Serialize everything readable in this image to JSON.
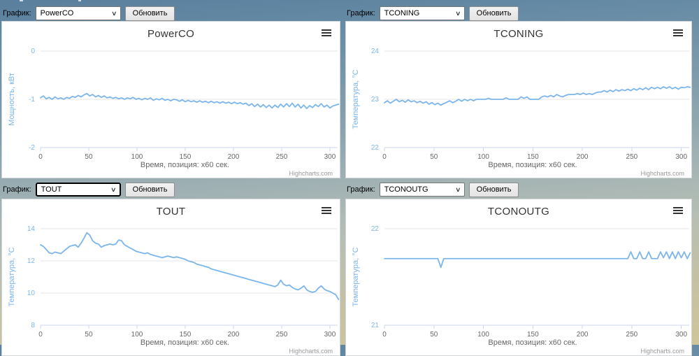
{
  "colors": {
    "series": "#7cb5ec",
    "grid": "#e6e6e6",
    "axis_line": "#ccd6eb",
    "x_axis_label": "#666666",
    "y_axis_label": "#7cb5ec",
    "title": "#333333",
    "credits": "#999999",
    "background_top": "#597f9e",
    "background_bottom": "#cfc59a"
  },
  "panels": [
    {
      "control": {
        "label": "График:",
        "select_value": "PowerCO",
        "button": "Обновить",
        "focused": false
      }
    },
    {
      "control": {
        "label": "График:",
        "select_value": "TCONING",
        "button": "Обновить",
        "focused": false
      }
    },
    {
      "control": {
        "label": "График:",
        "select_value": "TOUT",
        "button": "Обновить",
        "focused": true
      }
    },
    {
      "control": {
        "label": "График:",
        "select_value": "TCONOUTG",
        "button": "Обновить",
        "focused": false
      }
    }
  ],
  "chart_data": [
    {
      "type": "line",
      "title": "PowerCO",
      "xlabel": "Время, позиция: x60 сек.",
      "ylabel": "Мощность, кВт",
      "credits": "Highcharts.com",
      "legend_position": "none",
      "grid": "horizontal",
      "xlim": [
        0,
        308
      ],
      "ylim": [
        -2,
        0
      ],
      "xticks": [
        0,
        50,
        100,
        150,
        200,
        250,
        300
      ],
      "yticks": [
        0,
        -1,
        -2
      ],
      "x_start": 0,
      "x_step": 3,
      "values": [
        -0.97,
        -0.93,
        -0.99,
        -0.96,
        -1.0,
        -0.95,
        -0.99,
        -0.97,
        -1.0,
        -0.96,
        -0.98,
        -0.94,
        -0.96,
        -0.92,
        -0.95,
        -0.91,
        -0.88,
        -0.93,
        -0.9,
        -0.95,
        -0.92,
        -0.96,
        -0.93,
        -0.97,
        -0.95,
        -0.98,
        -0.96,
        -0.99,
        -0.97,
        -1.0,
        -0.97,
        -0.99,
        -0.96,
        -1.0,
        -0.98,
        -1.01,
        -0.98,
        -1.0,
        -0.97,
        -1.02,
        -0.99,
        -1.01,
        -0.98,
        -1.02,
        -1.0,
        -1.03,
        -1.0,
        -1.01,
        -1.04,
        -1.01,
        -1.05,
        -1.02,
        -1.05,
        -1.03,
        -1.06,
        -1.03,
        -1.06,
        -1.04,
        -1.07,
        -1.04,
        -1.07,
        -1.05,
        -1.08,
        -1.05,
        -1.08,
        -1.06,
        -1.09,
        -1.06,
        -1.09,
        -1.07,
        -1.1,
        -1.08,
        -1.13,
        -1.09,
        -1.15,
        -1.1,
        -1.16,
        -1.11,
        -1.17,
        -1.12,
        -1.18,
        -1.12,
        -1.17,
        -1.1,
        -1.16,
        -1.09,
        -1.15,
        -1.08,
        -1.16,
        -1.1,
        -1.18,
        -1.12,
        -1.19,
        -1.13,
        -1.17,
        -1.11,
        -1.15,
        -1.09,
        -1.16,
        -1.12,
        -1.18,
        -1.14,
        -1.12,
        -1.1
      ]
    },
    {
      "type": "line",
      "title": "TCONING",
      "xlabel": "Время, позиция: x60 сек.",
      "ylabel": "Температура, °C",
      "credits": "Highcharts.com",
      "legend_position": "none",
      "grid": "horizontal",
      "xlim": [
        0,
        308
      ],
      "ylim": [
        22,
        24
      ],
      "xticks": [
        0,
        50,
        100,
        150,
        200,
        250,
        300
      ],
      "yticks": [
        24,
        23,
        22
      ],
      "x_start": 0,
      "x_step": 3,
      "values": [
        22.93,
        22.97,
        22.92,
        22.96,
        23.0,
        22.95,
        22.98,
        22.94,
        22.99,
        22.95,
        22.97,
        22.93,
        22.96,
        22.92,
        22.95,
        22.9,
        22.93,
        22.89,
        22.92,
        22.88,
        22.91,
        22.94,
        22.97,
        22.93,
        22.96,
        23.0,
        22.96,
        23.0,
        22.97,
        23.0,
        22.97,
        23.0,
        23.0,
        23.0,
        23.0,
        23.02,
        23.0,
        23.0,
        23.0,
        23.0,
        23.0,
        23.03,
        23.0,
        23.0,
        23.0,
        23.0,
        23.05,
        23.02,
        23.05,
        23.0,
        23.0,
        23.0,
        23.0,
        23.05,
        23.07,
        23.05,
        23.08,
        23.05,
        23.1,
        23.07,
        23.05,
        23.08,
        23.1,
        23.1,
        23.1,
        23.12,
        23.1,
        23.13,
        23.1,
        23.12,
        23.1,
        23.13,
        23.15,
        23.15,
        23.18,
        23.15,
        23.19,
        23.16,
        23.2,
        23.17,
        23.2,
        23.18,
        23.21,
        23.18,
        23.22,
        23.19,
        23.23,
        23.2,
        23.24,
        23.2,
        23.25,
        23.22,
        23.25,
        23.22,
        23.26,
        23.23,
        23.26,
        23.22,
        23.25,
        23.21,
        23.25,
        23.24,
        23.26,
        23.25
      ]
    },
    {
      "type": "line",
      "title": "TOUT",
      "xlabel": "Время, позиция: x60 сек.",
      "ylabel": "Температура, °C",
      "credits": "Highcharts.com",
      "legend_position": "none",
      "grid": "horizontal",
      "xlim": [
        0,
        308
      ],
      "ylim": [
        8,
        14
      ],
      "xticks": [
        0,
        50,
        100,
        150,
        200,
        250,
        300
      ],
      "yticks": [
        14,
        12,
        10,
        8
      ],
      "x_start": 0,
      "x_step": 3,
      "values": [
        13.0,
        12.9,
        12.7,
        12.5,
        12.45,
        12.55,
        12.5,
        12.45,
        12.6,
        12.75,
        12.9,
        12.95,
        13.0,
        12.85,
        13.1,
        13.4,
        13.75,
        13.6,
        13.25,
        13.1,
        13.05,
        12.85,
        12.95,
        13.0,
        13.05,
        13.0,
        13.05,
        13.3,
        13.25,
        13.0,
        12.9,
        12.8,
        12.7,
        12.6,
        12.55,
        12.5,
        12.45,
        12.5,
        12.4,
        12.35,
        12.3,
        12.25,
        12.2,
        12.25,
        12.3,
        12.25,
        12.2,
        12.25,
        12.2,
        12.15,
        12.1,
        12.0,
        11.95,
        11.9,
        11.8,
        11.75,
        11.7,
        11.65,
        11.6,
        11.5,
        11.45,
        11.4,
        11.35,
        11.3,
        11.25,
        11.2,
        11.15,
        11.1,
        11.05,
        11.0,
        10.95,
        10.9,
        10.85,
        10.8,
        10.75,
        10.7,
        10.65,
        10.6,
        10.55,
        10.5,
        10.45,
        10.4,
        10.5,
        10.8,
        10.55,
        10.45,
        10.5,
        10.35,
        10.25,
        10.2,
        10.3,
        10.45,
        10.2,
        10.1,
        10.05,
        10.1,
        10.3,
        10.45,
        10.25,
        10.15,
        10.1,
        10.0,
        9.9,
        9.6
      ]
    },
    {
      "type": "line",
      "title": "TCONOUTG",
      "xlabel": "Время, позиция: x60 сек.",
      "ylabel": "Температура, °C",
      "credits": "Highcharts.com",
      "legend_position": "none",
      "grid": "horizontal",
      "xlim": [
        0,
        308
      ],
      "ylim": [
        21,
        22
      ],
      "xticks": [
        0,
        50,
        100,
        150,
        200,
        250,
        300
      ],
      "yticks": [
        22,
        21
      ],
      "x_start": 0,
      "x_step": 3,
      "values": [
        21.69,
        21.69,
        21.69,
        21.69,
        21.69,
        21.69,
        21.69,
        21.69,
        21.69,
        21.69,
        21.69,
        21.69,
        21.69,
        21.69,
        21.69,
        21.69,
        21.69,
        21.69,
        21.69,
        21.6,
        21.69,
        21.69,
        21.69,
        21.69,
        21.69,
        21.69,
        21.69,
        21.69,
        21.69,
        21.69,
        21.69,
        21.69,
        21.69,
        21.69,
        21.69,
        21.69,
        21.69,
        21.69,
        21.69,
        21.69,
        21.69,
        21.69,
        21.69,
        21.69,
        21.69,
        21.69,
        21.69,
        21.69,
        21.69,
        21.69,
        21.69,
        21.69,
        21.69,
        21.69,
        21.69,
        21.69,
        21.69,
        21.69,
        21.69,
        21.69,
        21.69,
        21.69,
        21.69,
        21.69,
        21.69,
        21.69,
        21.69,
        21.69,
        21.69,
        21.69,
        21.69,
        21.69,
        21.69,
        21.69,
        21.69,
        21.69,
        21.69,
        21.69,
        21.69,
        21.69,
        21.69,
        21.69,
        21.69,
        21.76,
        21.69,
        21.69,
        21.76,
        21.69,
        21.69,
        21.76,
        21.69,
        21.69,
        21.69,
        21.76,
        21.7,
        21.76,
        21.69,
        21.76,
        21.69,
        21.76,
        21.7,
        21.76,
        21.69,
        21.75
      ]
    }
  ]
}
